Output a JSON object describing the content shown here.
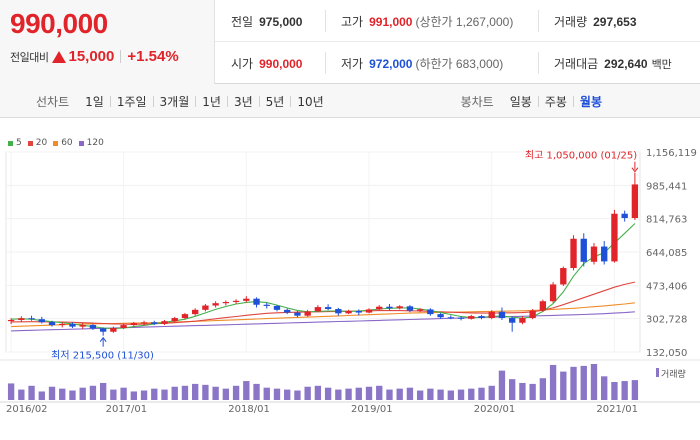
{
  "quote": {
    "price": "990,000",
    "change_label": "전일대비",
    "change_amount": "15,000",
    "change_percent": "+1.54%"
  },
  "stats": {
    "prev_close": {
      "label": "전일",
      "value": "975,000"
    },
    "high": {
      "label": "고가",
      "value": "991,000",
      "sub": "(상한가 1,267,000)"
    },
    "volume": {
      "label": "거래량",
      "value": "297,653"
    },
    "open": {
      "label": "시가",
      "value": "990,000"
    },
    "low": {
      "label": "저가",
      "value": "972,000",
      "sub": "(하한가 683,000)"
    },
    "trade_value": {
      "label": "거래대금",
      "value": "292,640",
      "unit": "백만"
    }
  },
  "toolbar": {
    "line_title": "선차트",
    "line_ranges": [
      "1일",
      "1주일",
      "3개월",
      "1년",
      "3년",
      "5년",
      "10년"
    ],
    "candle_title": "봉차트",
    "candle_ranges": [
      "일봉",
      "주봉",
      "월봉"
    ],
    "candle_active": "월봉"
  },
  "colors": {
    "up": "#e0242a",
    "down": "#1e50d8",
    "ma5": "#44b04a",
    "ma20": "#e0463f",
    "ma60": "#f08c2a",
    "ma120": "#8a68c8",
    "volume": "#8a75c7"
  },
  "chart_data": {
    "type": "candlestick",
    "legend": [
      {
        "label": "5",
        "color": "#44b04a"
      },
      {
        "label": "20",
        "color": "#e0463f"
      },
      {
        "label": "60",
        "color": "#f08c2a"
      },
      {
        "label": "120",
        "color": "#8a68c8"
      }
    ],
    "y_ticks": [
      "1,156,119",
      "985,441",
      "814,763",
      "644,085",
      "473,406",
      "302,728",
      "132,050"
    ],
    "y_min": 132050,
    "y_max": 1156119,
    "x_ticks": [
      "2016/02",
      "2017/01",
      "2018/01",
      "2019/01",
      "2020/01",
      "2021/01"
    ],
    "max_annotation": "최고 1,050,000 (01/25)",
    "min_annotation": "최저 215,500 (11/30)",
    "volume_label": "거래량",
    "candles": [
      {
        "date": "2016/02",
        "o": 290000,
        "h": 305000,
        "l": 275000,
        "c": 296000
      },
      {
        "date": "2016/03",
        "o": 296000,
        "h": 315000,
        "l": 285000,
        "c": 305000
      },
      {
        "date": "2016/04",
        "o": 305000,
        "h": 318000,
        "l": 292000,
        "c": 300000
      },
      {
        "date": "2016/05",
        "o": 300000,
        "h": 312000,
        "l": 278000,
        "c": 285000
      },
      {
        "date": "2016/06",
        "o": 285000,
        "h": 292000,
        "l": 262000,
        "c": 270000
      },
      {
        "date": "2016/07",
        "o": 270000,
        "h": 285000,
        "l": 258000,
        "c": 276000
      },
      {
        "date": "2016/08",
        "o": 276000,
        "h": 284000,
        "l": 255000,
        "c": 262000
      },
      {
        "date": "2016/09",
        "o": 262000,
        "h": 280000,
        "l": 250000,
        "c": 270000
      },
      {
        "date": "2016/10",
        "o": 270000,
        "h": 275000,
        "l": 245000,
        "c": 253000
      },
      {
        "date": "2016/11",
        "o": 253000,
        "h": 258000,
        "l": 215500,
        "c": 236000
      },
      {
        "date": "2016/12",
        "o": 236000,
        "h": 262000,
        "l": 230000,
        "c": 255000
      },
      {
        "date": "2017/01",
        "o": 255000,
        "h": 278000,
        "l": 250000,
        "c": 270000
      },
      {
        "date": "2017/02",
        "o": 270000,
        "h": 286000,
        "l": 262000,
        "c": 280000
      },
      {
        "date": "2017/03",
        "o": 280000,
        "h": 292000,
        "l": 268000,
        "c": 284000
      },
      {
        "date": "2017/04",
        "o": 284000,
        "h": 292000,
        "l": 270000,
        "c": 276000
      },
      {
        "date": "2017/05",
        "o": 276000,
        "h": 296000,
        "l": 270000,
        "c": 290000
      },
      {
        "date": "2017/06",
        "o": 290000,
        "h": 312000,
        "l": 284000,
        "c": 306000
      },
      {
        "date": "2017/07",
        "o": 306000,
        "h": 332000,
        "l": 300000,
        "c": 326000
      },
      {
        "date": "2017/08",
        "o": 326000,
        "h": 356000,
        "l": 318000,
        "c": 348000
      },
      {
        "date": "2017/09",
        "o": 348000,
        "h": 378000,
        "l": 340000,
        "c": 370000
      },
      {
        "date": "2017/10",
        "o": 370000,
        "h": 392000,
        "l": 360000,
        "c": 382000
      },
      {
        "date": "2017/11",
        "o": 382000,
        "h": 396000,
        "l": 370000,
        "c": 388000
      },
      {
        "date": "2017/12",
        "o": 388000,
        "h": 402000,
        "l": 378000,
        "c": 394000
      },
      {
        "date": "2018/01",
        "o": 394000,
        "h": 418000,
        "l": 386000,
        "c": 405000
      },
      {
        "date": "2018/02",
        "o": 405000,
        "h": 412000,
        "l": 360000,
        "c": 374000
      },
      {
        "date": "2018/03",
        "o": 374000,
        "h": 384000,
        "l": 355000,
        "c": 368000
      },
      {
        "date": "2018/04",
        "o": 368000,
        "h": 372000,
        "l": 340000,
        "c": 348000
      },
      {
        "date": "2018/05",
        "o": 348000,
        "h": 355000,
        "l": 326000,
        "c": 334000
      },
      {
        "date": "2018/06",
        "o": 334000,
        "h": 342000,
        "l": 310000,
        "c": 318000
      },
      {
        "date": "2018/07",
        "o": 318000,
        "h": 348000,
        "l": 312000,
        "c": 340000
      },
      {
        "date": "2018/08",
        "o": 340000,
        "h": 372000,
        "l": 336000,
        "c": 362000
      },
      {
        "date": "2018/09",
        "o": 362000,
        "h": 376000,
        "l": 346000,
        "c": 352000
      },
      {
        "date": "2018/10",
        "o": 352000,
        "h": 358000,
        "l": 318000,
        "c": 330000
      },
      {
        "date": "2018/11",
        "o": 330000,
        "h": 348000,
        "l": 326000,
        "c": 342000
      },
      {
        "date": "2018/12",
        "o": 342000,
        "h": 350000,
        "l": 320000,
        "c": 334000
      },
      {
        "date": "2019/01",
        "o": 334000,
        "h": 356000,
        "l": 330000,
        "c": 350000
      },
      {
        "date": "2019/02",
        "o": 350000,
        "h": 372000,
        "l": 344000,
        "c": 364000
      },
      {
        "date": "2019/03",
        "o": 364000,
        "h": 378000,
        "l": 346000,
        "c": 356000
      },
      {
        "date": "2019/04",
        "o": 356000,
        "h": 372000,
        "l": 350000,
        "c": 366000
      },
      {
        "date": "2019/05",
        "o": 366000,
        "h": 372000,
        "l": 336000,
        "c": 344000
      },
      {
        "date": "2019/06",
        "o": 344000,
        "h": 356000,
        "l": 336000,
        "c": 350000
      },
      {
        "date": "2019/07",
        "o": 350000,
        "h": 356000,
        "l": 318000,
        "c": 326000
      },
      {
        "date": "2019/08",
        "o": 326000,
        "h": 332000,
        "l": 302000,
        "c": 310000
      },
      {
        "date": "2019/09",
        "o": 310000,
        "h": 320000,
        "l": 300000,
        "c": 308000
      },
      {
        "date": "2019/10",
        "o": 308000,
        "h": 316000,
        "l": 294000,
        "c": 302000
      },
      {
        "date": "2019/11",
        "o": 302000,
        "h": 322000,
        "l": 298000,
        "c": 316000
      },
      {
        "date": "2019/12",
        "o": 316000,
        "h": 322000,
        "l": 300000,
        "c": 306000
      },
      {
        "date": "2020/01",
        "o": 306000,
        "h": 346000,
        "l": 300000,
        "c": 338000
      },
      {
        "date": "2020/02",
        "o": 338000,
        "h": 360000,
        "l": 296000,
        "c": 306000
      },
      {
        "date": "2020/03",
        "o": 306000,
        "h": 314000,
        "l": 236000,
        "c": 282000
      },
      {
        "date": "2020/04",
        "o": 282000,
        "h": 316000,
        "l": 274000,
        "c": 306000
      },
      {
        "date": "2020/05",
        "o": 306000,
        "h": 352000,
        "l": 300000,
        "c": 344000
      },
      {
        "date": "2020/06",
        "o": 344000,
        "h": 400000,
        "l": 338000,
        "c": 392000
      },
      {
        "date": "2020/07",
        "o": 392000,
        "h": 490000,
        "l": 384000,
        "c": 478000
      },
      {
        "date": "2020/08",
        "o": 478000,
        "h": 570000,
        "l": 470000,
        "c": 562000
      },
      {
        "date": "2020/09",
        "o": 562000,
        "h": 730000,
        "l": 550000,
        "c": 712000
      },
      {
        "date": "2020/10",
        "o": 712000,
        "h": 740000,
        "l": 570000,
        "c": 594000
      },
      {
        "date": "2020/11",
        "o": 594000,
        "h": 690000,
        "l": 580000,
        "c": 672000
      },
      {
        "date": "2020/12",
        "o": 672000,
        "h": 700000,
        "l": 580000,
        "c": 596000
      },
      {
        "date": "2021/01",
        "o": 596000,
        "h": 860000,
        "l": 590000,
        "c": 840000
      },
      {
        "date": "2021/02",
        "o": 840000,
        "h": 856000,
        "l": 800000,
        "c": 818000
      },
      {
        "date": "2021/03",
        "o": 818000,
        "h": 1050000,
        "l": 808000,
        "c": 990000
      }
    ],
    "volume": [
      35,
      22,
      30,
      18,
      28,
      24,
      20,
      26,
      30,
      36,
      22,
      26,
      18,
      20,
      24,
      22,
      28,
      30,
      34,
      32,
      28,
      24,
      30,
      40,
      34,
      26,
      24,
      22,
      20,
      28,
      30,
      26,
      22,
      24,
      26,
      28,
      30,
      22,
      24,
      26,
      20,
      24,
      22,
      20,
      22,
      24,
      26,
      30,
      62,
      44,
      36,
      34,
      46,
      74,
      60,
      70,
      72,
      76,
      50,
      38,
      40,
      42
    ],
    "ma5": [
      300000,
      302000,
      300000,
      293000,
      287000,
      282000,
      276000,
      269000,
      262000,
      255000,
      252000,
      255000,
      262000,
      268000,
      276000,
      284000,
      292000,
      300000,
      315000,
      332000,
      350000,
      365000,
      378000,
      386000,
      390000,
      385000,
      372000,
      358000,
      345000,
      338000,
      340000,
      342000,
      342000,
      340000,
      342000,
      346000,
      352000,
      356000,
      358000,
      358000,
      352000,
      344000,
      334000,
      324000,
      314000,
      308000,
      309000,
      315000,
      316000,
      310000,
      305000,
      312000,
      340000,
      380000,
      440000,
      520000,
      585000,
      620000,
      640000,
      690000,
      740000,
      790000
    ],
    "ma20": [
      286000,
      286500,
      287000,
      286500,
      286000,
      285000,
      284000,
      282000,
      280000,
      278000,
      276000,
      275000,
      274000,
      275000,
      277000,
      279000,
      282000,
      286000,
      290000,
      296000,
      302000,
      308000,
      314000,
      320000,
      325000,
      330000,
      333000,
      335000,
      336000,
      337000,
      338000,
      339000,
      340000,
      341000,
      342000,
      343000,
      344000,
      344000,
      344000,
      343000,
      342000,
      340000,
      338000,
      336000,
      334000,
      332000,
      331000,
      331000,
      332000,
      333000,
      334000,
      338000,
      346000,
      358000,
      374000,
      392000,
      410000,
      428000,
      446000,
      464000,
      478000,
      490000
    ],
    "ma60": [
      262000,
      264000,
      266000,
      268000,
      270000,
      272000,
      274000,
      275000,
      276000,
      277000,
      278000,
      279000,
      280000,
      281000,
      282000,
      283000,
      285000,
      287000,
      289000,
      291000,
      293000,
      295000,
      297000,
      299000,
      301000,
      303000,
      305000,
      307000,
      309000,
      311000,
      313000,
      315000,
      317000,
      319000,
      321000,
      323000,
      325000,
      327000,
      329000,
      331000,
      333000,
      334000,
      335000,
      336000,
      337000,
      338000,
      339000,
      340000,
      341000,
      342000,
      343000,
      345000,
      347000,
      350000,
      353000,
      356000,
      360000,
      364000,
      368000,
      373000,
      378000,
      384000
    ],
    "ma120": [
      240000,
      241500,
      243000,
      244500,
      246000,
      247500,
      249000,
      250500,
      252000,
      253500,
      255000,
      256500,
      258000,
      259500,
      261000,
      262500,
      264000,
      265500,
      267000,
      268500,
      270000,
      271500,
      273000,
      274500,
      276000,
      277500,
      279000,
      280500,
      282000,
      283500,
      285000,
      286500,
      288000,
      289500,
      291000,
      292500,
      294000,
      295500,
      297000,
      298500,
      300000,
      301500,
      303000,
      304500,
      306000,
      307500,
      309000,
      310500,
      312000,
      313500,
      315000,
      316500,
      318000,
      319500,
      321000,
      322500,
      324000,
      326000,
      328000,
      331000,
      334000,
      338000
    ]
  }
}
